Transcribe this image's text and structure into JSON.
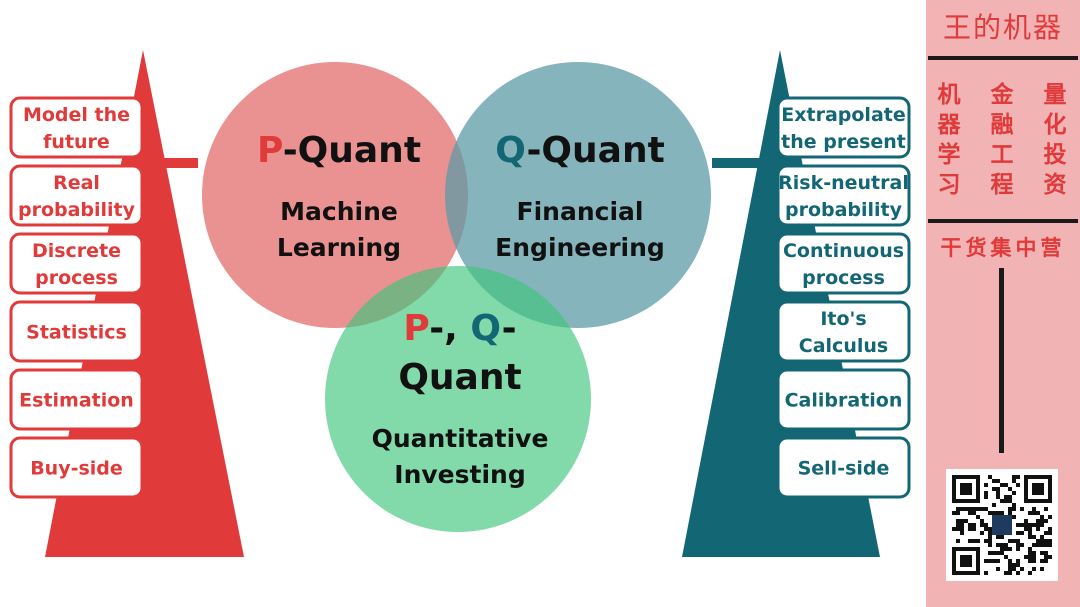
{
  "colors": {
    "red": "#e03a3a",
    "teal": "#136674",
    "p_circle": "#ec8f8f",
    "q_circle": "#7fb2bb",
    "pq_circle": "#7ed7a4",
    "panel_bg": "#f2b3b4"
  },
  "left_list": {
    "items": [
      {
        "lines": [
          "Model the",
          "future"
        ]
      },
      {
        "lines": [
          "Real",
          "probability"
        ]
      },
      {
        "lines": [
          "Discrete",
          "process"
        ]
      },
      {
        "lines": [
          "Statistics"
        ]
      },
      {
        "lines": [
          "Estimation"
        ]
      },
      {
        "lines": [
          "Buy-side"
        ]
      }
    ]
  },
  "right_list": {
    "items": [
      {
        "lines": [
          "Extrapolate",
          "the present"
        ]
      },
      {
        "lines": [
          "Risk-neutral",
          "probability"
        ]
      },
      {
        "lines": [
          "Continuous",
          "process"
        ]
      },
      {
        "lines": [
          "Ito's",
          "Calculus"
        ]
      },
      {
        "lines": [
          "Calibration"
        ]
      },
      {
        "lines": [
          "Sell-side"
        ]
      }
    ]
  },
  "circles": {
    "p": {
      "letter": "P",
      "rest": "-Quant",
      "subtitle": [
        "Machine",
        "Learning"
      ]
    },
    "q": {
      "letter": "Q",
      "rest": "-Quant",
      "subtitle": [
        "Financial",
        "Engineering"
      ]
    },
    "pq": {
      "p_letter": "P",
      "sep": "-, ",
      "q_letter": "Q",
      "dash": "-",
      "line2": "Quant",
      "subtitle": [
        "Quantitative",
        "Investing"
      ]
    }
  },
  "side_panel": {
    "title": "王的机器",
    "columns": [
      [
        "机",
        "器",
        "学",
        "习"
      ],
      [
        "金",
        "融",
        "工",
        "程"
      ],
      [
        "量",
        "化",
        "投",
        "资"
      ]
    ],
    "slogan": "干货集中营",
    "qr_icon": "qr-code-icon"
  }
}
